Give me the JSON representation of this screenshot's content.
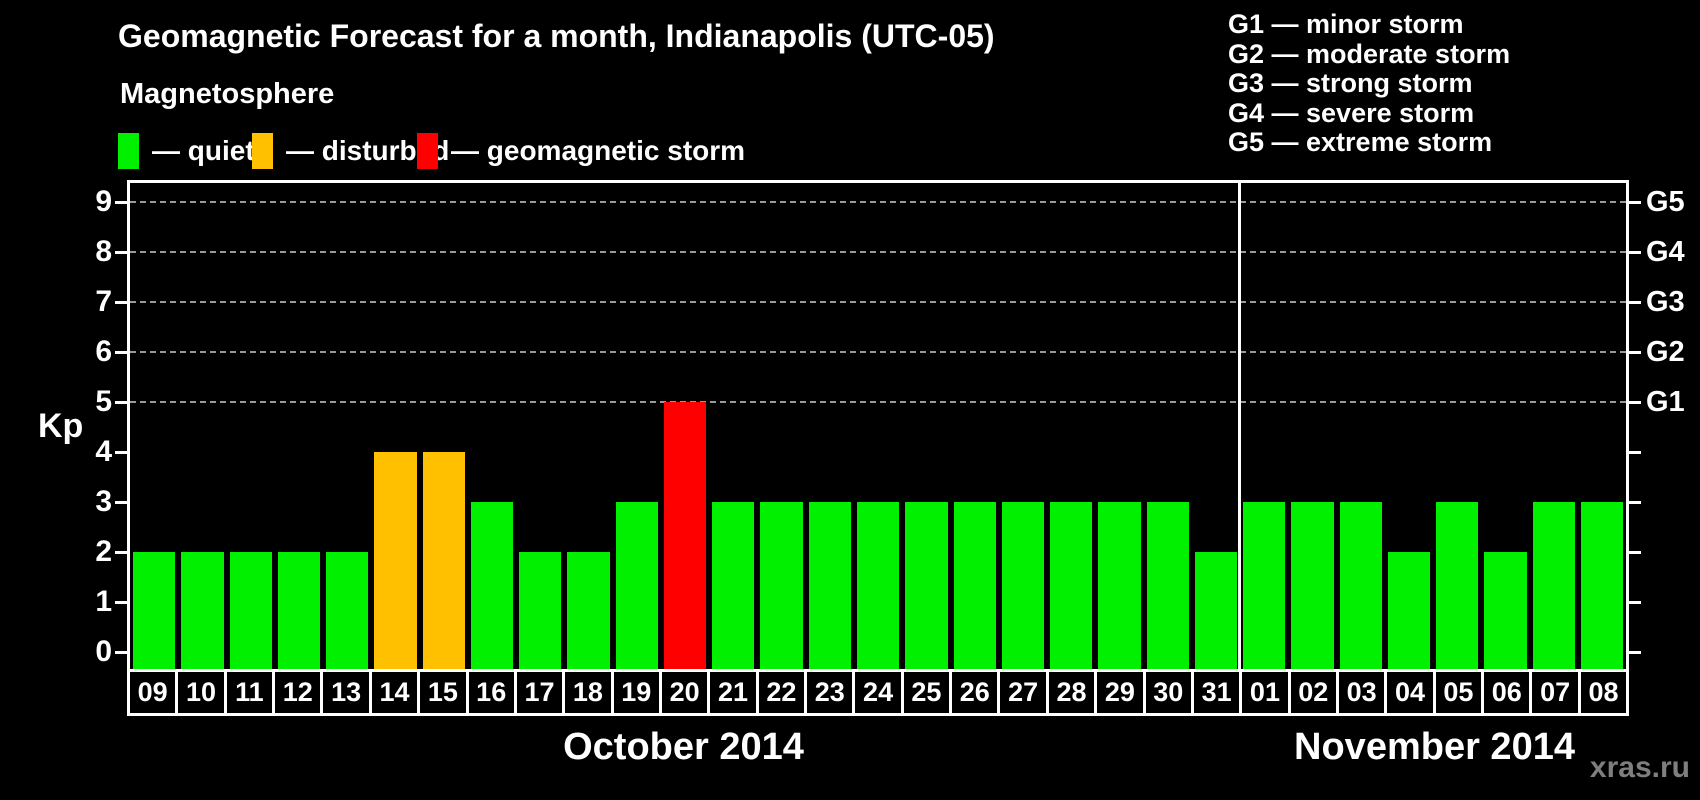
{
  "title": "Geomagnetic Forecast for a month, Indianapolis (UTC-05)",
  "legend": {
    "heading": "Magnetosphere",
    "items": [
      {
        "name": "quiet",
        "label": "— quiet",
        "color": "#00f000"
      },
      {
        "name": "disturbed",
        "label": "— disturbed",
        "color": "#ffc000"
      },
      {
        "name": "storm",
        "label": "— geomagnetic storm",
        "color": "#ff0000"
      }
    ]
  },
  "storm_scale": {
    "lines": [
      "G1 — minor storm",
      "G2 — moderate storm",
      "G3 — strong storm",
      "G4 — severe storm",
      "G5 — extreme storm"
    ]
  },
  "watermark": "xras.ru",
  "chart_data": {
    "type": "bar",
    "title": "Geomagnetic Forecast for a month, Indianapolis (UTC-05)",
    "ylabel": "Kp",
    "ylim": [
      0,
      9
    ],
    "yticks": [
      0,
      1,
      2,
      3,
      4,
      5,
      6,
      7,
      8,
      9
    ],
    "grid": "horizontal-dashed",
    "gridlines_at_kp": [
      5,
      6,
      7,
      8,
      9
    ],
    "legend_position": "top",
    "right_axis_labels": [
      {
        "kp": 5,
        "label": "G1"
      },
      {
        "kp": 6,
        "label": "G2"
      },
      {
        "kp": 7,
        "label": "G3"
      },
      {
        "kp": 8,
        "label": "G4"
      },
      {
        "kp": 9,
        "label": "G5"
      }
    ],
    "months": [
      {
        "label": "October 2014",
        "days": 23
      },
      {
        "label": "November 2014",
        "days": 8
      }
    ],
    "bars": [
      {
        "day": "09",
        "month": "October 2014",
        "kp": 2,
        "status": "quiet"
      },
      {
        "day": "10",
        "month": "October 2014",
        "kp": 2,
        "status": "quiet"
      },
      {
        "day": "11",
        "month": "October 2014",
        "kp": 2,
        "status": "quiet"
      },
      {
        "day": "12",
        "month": "October 2014",
        "kp": 2,
        "status": "quiet"
      },
      {
        "day": "13",
        "month": "October 2014",
        "kp": 2,
        "status": "quiet"
      },
      {
        "day": "14",
        "month": "October 2014",
        "kp": 4,
        "status": "disturbed"
      },
      {
        "day": "15",
        "month": "October 2014",
        "kp": 4,
        "status": "disturbed"
      },
      {
        "day": "16",
        "month": "October 2014",
        "kp": 3,
        "status": "quiet"
      },
      {
        "day": "17",
        "month": "October 2014",
        "kp": 2,
        "status": "quiet"
      },
      {
        "day": "18",
        "month": "October 2014",
        "kp": 2,
        "status": "quiet"
      },
      {
        "day": "19",
        "month": "October 2014",
        "kp": 3,
        "status": "quiet"
      },
      {
        "day": "20",
        "month": "October 2014",
        "kp": 5,
        "status": "storm"
      },
      {
        "day": "21",
        "month": "October 2014",
        "kp": 3,
        "status": "quiet"
      },
      {
        "day": "22",
        "month": "October 2014",
        "kp": 3,
        "status": "quiet"
      },
      {
        "day": "23",
        "month": "October 2014",
        "kp": 3,
        "status": "quiet"
      },
      {
        "day": "24",
        "month": "October 2014",
        "kp": 3,
        "status": "quiet"
      },
      {
        "day": "25",
        "month": "October 2014",
        "kp": 3,
        "status": "quiet"
      },
      {
        "day": "26",
        "month": "October 2014",
        "kp": 3,
        "status": "quiet"
      },
      {
        "day": "27",
        "month": "October 2014",
        "kp": 3,
        "status": "quiet"
      },
      {
        "day": "28",
        "month": "October 2014",
        "kp": 3,
        "status": "quiet"
      },
      {
        "day": "29",
        "month": "October 2014",
        "kp": 3,
        "status": "quiet"
      },
      {
        "day": "30",
        "month": "October 2014",
        "kp": 3,
        "status": "quiet"
      },
      {
        "day": "31",
        "month": "October 2014",
        "kp": 2,
        "status": "quiet"
      },
      {
        "day": "01",
        "month": "November 2014",
        "kp": 3,
        "status": "quiet"
      },
      {
        "day": "02",
        "month": "November 2014",
        "kp": 3,
        "status": "quiet"
      },
      {
        "day": "03",
        "month": "November 2014",
        "kp": 3,
        "status": "quiet"
      },
      {
        "day": "04",
        "month": "November 2014",
        "kp": 2,
        "status": "quiet"
      },
      {
        "day": "05",
        "month": "November 2014",
        "kp": 3,
        "status": "quiet"
      },
      {
        "day": "06",
        "month": "November 2014",
        "kp": 2,
        "status": "quiet"
      },
      {
        "day": "07",
        "month": "November 2014",
        "kp": 3,
        "status": "quiet"
      },
      {
        "day": "08",
        "month": "November 2014",
        "kp": 3,
        "status": "quiet"
      }
    ]
  }
}
